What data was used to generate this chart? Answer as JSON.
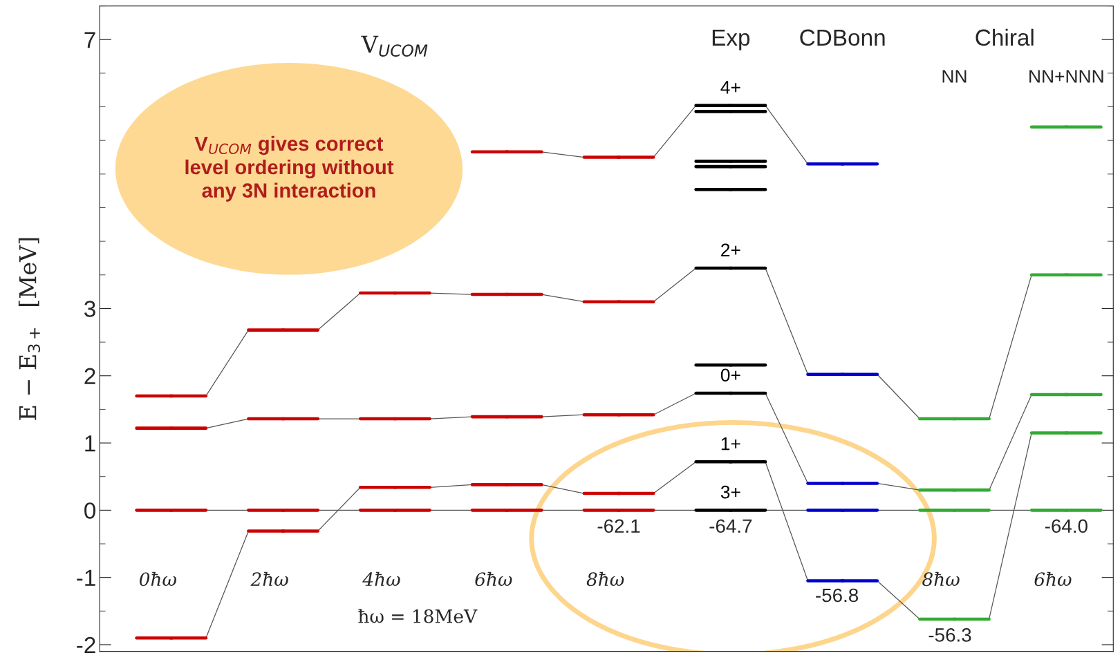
{
  "chart_data": {
    "type": "scatter",
    "marker": "square",
    "ylabel": "E − E$_{3+}$  [MeV]",
    "categories": [
      "0ħω",
      "2ħω",
      "4ħω",
      "6ħω",
      "8ħω",
      null,
      null,
      "8ħω",
      "6ħω"
    ],
    "series": [
      {
        "name": "4+",
        "colors": [
          "#cc0000",
          "#cc0000",
          "#cc0000",
          "#cc0000",
          "#cc0000",
          "#000000",
          "#0000cc",
          "#33aa33",
          "#33aa33"
        ],
        "values": [
          null,
          null,
          null,
          5.33,
          5.25,
          6.02,
          5.15,
          null,
          5.7
        ]
      },
      {
        "colors": [
          "#000000",
          "#000000",
          "#000000",
          "#000000",
          "#000000",
          "#000000",
          "#000000",
          "#000000",
          "#000000"
        ],
        "values": [
          null,
          null,
          null,
          null,
          null,
          5.93,
          null,
          null,
          null
        ]
      },
      {
        "colors": [
          "#000000",
          "#000000",
          "#000000",
          "#000000",
          "#000000",
          "#000000",
          "#000000",
          "#000000",
          "#000000"
        ],
        "values": [
          null,
          null,
          null,
          null,
          null,
          5.19,
          null,
          null,
          null
        ]
      },
      {
        "colors": [
          "#000000",
          "#000000",
          "#000000",
          "#000000",
          "#000000",
          "#000000",
          "#000000",
          "#000000",
          "#000000"
        ],
        "values": [
          null,
          null,
          null,
          null,
          null,
          5.11,
          null,
          null,
          null
        ]
      },
      {
        "colors": [
          "#000000",
          "#000000",
          "#000000",
          "#000000",
          "#000000",
          "#000000",
          "#000000",
          "#000000",
          "#000000"
        ],
        "values": [
          null,
          null,
          null,
          null,
          null,
          4.77,
          null,
          null,
          null
        ]
      },
      {
        "name": "2+",
        "colors": [
          "#cc0000",
          "#cc0000",
          "#cc0000",
          "#cc0000",
          "#cc0000",
          "#000000",
          "#0000cc",
          "#33aa33",
          "#33aa33"
        ],
        "values": [
          1.7,
          2.68,
          3.23,
          3.21,
          3.1,
          3.6,
          2.02,
          1.36,
          3.5
        ]
      },
      {
        "colors": [
          "#000000",
          "#000000",
          "#000000",
          "#000000",
          "#000000",
          "#000000",
          "#000000",
          "#000000",
          "#000000"
        ],
        "values": [
          null,
          null,
          null,
          null,
          null,
          2.16,
          null,
          null,
          null
        ]
      },
      {
        "name": "0+",
        "colors": [
          "#cc0000",
          "#cc0000",
          "#cc0000",
          "#cc0000",
          "#cc0000",
          "#000000",
          "#0000cc",
          "#33aa33",
          "#33aa33"
        ],
        "values": [
          1.22,
          1.36,
          1.36,
          1.39,
          1.42,
          1.74,
          0.4,
          0.3,
          1.72
        ]
      },
      {
        "name": "1+",
        "colors": [
          "#cc0000",
          "#cc0000",
          "#cc0000",
          "#cc0000",
          "#cc0000",
          "#000000",
          "#0000cc",
          "#33aa33",
          "#33aa33"
        ],
        "values": [
          -1.9,
          -0.31,
          0.34,
          0.38,
          0.25,
          0.72,
          -1.05,
          -1.62,
          1.15
        ]
      },
      {
        "name": "3+",
        "colors": [
          "#cc0000",
          "#cc0000",
          "#cc0000",
          "#cc0000",
          "#cc0000",
          "#000000",
          "#0000cc",
          "#33aa33",
          "#33aa33"
        ],
        "values": [
          0,
          0,
          0,
          0,
          0,
          0,
          0,
          0,
          0
        ]
      }
    ],
    "ylim": [
      -2.1,
      7.5
    ],
    "yticks": [
      -2,
      -1,
      0,
      1,
      2,
      3,
      7
    ],
    "annotations": [
      "V$_{UCOM}$",
      "Exp",
      "CDBonn",
      "Chiral",
      "NN",
      "NN+NNN",
      "ħω = 18MeV",
      "-62.1",
      "-64.7",
      "-56.8",
      "-56.3",
      "-64.0",
      "V$_{UCOM}$ gives correct\nlevel ordering without\nany 3N interaction"
    ]
  }
}
